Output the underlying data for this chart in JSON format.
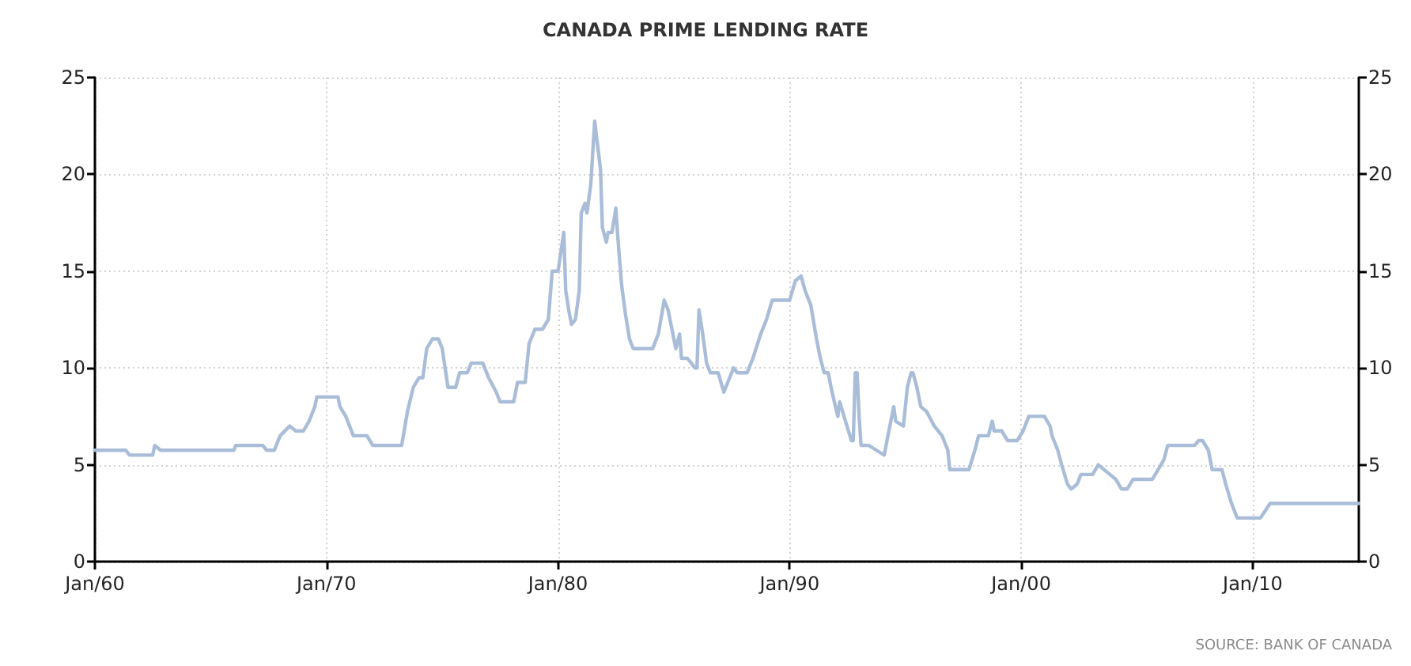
{
  "chart_data": {
    "type": "line",
    "title": "CANADA PRIME LENDING RATE",
    "x": [
      "1960-01",
      "1961-05",
      "1961-07",
      "1962-07",
      "1962-08",
      "1962-11",
      "1966-01",
      "1966-02",
      "1967-04",
      "1967-06",
      "1967-10",
      "1968-01",
      "1968-06",
      "1968-09",
      "1969-01",
      "1969-04",
      "1969-07",
      "1969-08",
      "1970-07",
      "1970-08",
      "1970-11",
      "1971-03",
      "1971-10",
      "1972-01",
      "1973-04",
      "1973-07",
      "1973-10",
      "1974-01",
      "1974-03",
      "1974-05",
      "1974-08",
      "1974-11",
      "1975-01",
      "1975-04",
      "1975-08",
      "1975-10",
      "1976-02",
      "1976-04",
      "1976-10",
      "1977-01",
      "1977-05",
      "1977-07",
      "1978-02",
      "1978-04",
      "1978-08",
      "1978-10",
      "1979-01",
      "1979-05",
      "1979-08",
      "1979-10",
      "1980-01",
      "1980-04",
      "1980-05",
      "1980-07",
      "1980-08",
      "1980-10",
      "1980-12",
      "1981-01",
      "1981-03",
      "1981-04",
      "1981-06",
      "1981-08",
      "1981-11",
      "1981-12",
      "1982-02",
      "1982-03",
      "1982-05",
      "1982-07",
      "1982-08",
      "1982-10",
      "1982-12",
      "1983-02",
      "1983-04",
      "1984-02",
      "1984-05",
      "1984-08",
      "1984-10",
      "1985-01",
      "1985-02",
      "1985-04",
      "1985-05",
      "1985-08",
      "1985-12",
      "1986-01",
      "1986-02",
      "1986-04",
      "1986-06",
      "1986-08",
      "1986-12",
      "1987-03",
      "1987-06",
      "1987-08",
      "1987-10",
      "1988-03",
      "1988-06",
      "1988-10",
      "1989-01",
      "1989-04",
      "1990-01",
      "1990-04",
      "1990-07",
      "1990-09",
      "1990-12",
      "1991-03",
      "1991-05",
      "1991-07",
      "1991-09",
      "1991-11",
      "1992-02",
      "1992-03",
      "1992-06",
      "1992-09",
      "1992-10",
      "1992-11",
      "1992-12",
      "1993-01",
      "1993-02",
      "1993-06",
      "1993-10",
      "1994-02",
      "1994-04",
      "1994-07",
      "1994-08",
      "1994-12",
      "1995-02",
      "1995-04",
      "1995-05",
      "1995-07",
      "1995-09",
      "1995-12",
      "1996-04",
      "1996-08",
      "1996-11",
      "1996-12",
      "1997-10",
      "1998-01",
      "1998-03",
      "1998-08",
      "1998-10",
      "1998-11",
      "1999-03",
      "1999-06",
      "1999-11",
      "2000-02",
      "2000-05",
      "2001-01",
      "2001-04",
      "2001-05",
      "2001-08",
      "2001-10",
      "2002-01",
      "2002-03",
      "2002-06",
      "2002-08",
      "2003-02",
      "2003-05",
      "2003-08",
      "2003-11",
      "2004-02",
      "2004-05",
      "2004-08",
      "2004-11",
      "2005-09",
      "2005-12",
      "2006-03",
      "2006-05",
      "2007-07",
      "2007-09",
      "2007-11",
      "2008-02",
      "2008-04",
      "2008-09",
      "2008-11",
      "2009-02",
      "2009-05",
      "2010-05",
      "2010-10",
      "2014-08"
    ],
    "values": [
      5.75,
      5.75,
      5.5,
      5.5,
      6.0,
      5.75,
      5.75,
      6.0,
      6.0,
      5.75,
      5.75,
      6.5,
      7.0,
      6.75,
      6.75,
      7.25,
      8.0,
      8.5,
      8.5,
      8.0,
      7.5,
      6.5,
      6.5,
      6.0,
      6.0,
      7.75,
      9.0,
      9.5,
      9.5,
      11.0,
      11.5,
      11.5,
      11.0,
      9.0,
      9.0,
      9.75,
      9.75,
      10.25,
      10.25,
      9.5,
      8.75,
      8.25,
      8.25,
      9.25,
      9.25,
      11.25,
      12.0,
      12.0,
      12.5,
      15.0,
      15.0,
      17.0,
      14.0,
      12.75,
      12.25,
      12.5,
      14.0,
      18.0,
      18.5,
      18.0,
      19.5,
      22.75,
      20.25,
      17.25,
      16.5,
      17.0,
      17.0,
      18.25,
      16.75,
      14.25,
      12.75,
      11.5,
      11.0,
      11.0,
      11.75,
      13.5,
      13.0,
      11.5,
      11.0,
      11.75,
      10.5,
      10.5,
      10.0,
      10.0,
      13.0,
      11.75,
      10.25,
      9.75,
      9.75,
      8.75,
      9.5,
      10.0,
      9.75,
      9.75,
      10.5,
      11.75,
      12.5,
      13.5,
      13.5,
      14.5,
      14.75,
      14.0,
      13.25,
      11.5,
      10.5,
      9.75,
      9.75,
      8.75,
      7.5,
      8.25,
      7.25,
      6.25,
      6.25,
      9.75,
      9.75,
      7.5,
      6.0,
      6.0,
      5.75,
      5.5,
      6.5,
      8.0,
      7.25,
      7.0,
      9.0,
      9.75,
      9.75,
      9.0,
      8.0,
      7.75,
      7.0,
      6.5,
      5.75,
      4.75,
      4.75,
      5.75,
      6.5,
      6.5,
      7.25,
      6.75,
      6.75,
      6.25,
      6.25,
      6.75,
      7.5,
      7.5,
      7.0,
      6.5,
      5.75,
      5.0,
      4.0,
      3.75,
      4.0,
      4.5,
      4.5,
      5.0,
      4.75,
      4.5,
      4.25,
      3.75,
      3.75,
      4.25,
      4.25,
      4.75,
      5.25,
      6.0,
      6.0,
      6.25,
      6.25,
      5.75,
      4.75,
      4.75,
      4.0,
      3.0,
      2.25,
      2.25,
      3.0,
      3.0
    ],
    "color": "#a9bdd9",
    "marker": "none",
    "line_style": "solid",
    "xlim": [
      "1960-01",
      "2014-08"
    ],
    "xticks": [
      {
        "value": "1960-01",
        "label": "Jan/60"
      },
      {
        "value": "1970-01",
        "label": "Jan/70"
      },
      {
        "value": "1980-01",
        "label": "Jan/80"
      },
      {
        "value": "1990-01",
        "label": "Jan/90"
      },
      {
        "value": "2000-01",
        "label": "Jan/00"
      },
      {
        "value": "2010-01",
        "label": "Jan/10"
      }
    ],
    "ylim": [
      0,
      25
    ],
    "yticks": [
      0,
      5,
      10,
      15,
      20,
      25
    ],
    "y2lim": [
      0,
      25
    ],
    "y2ticks": [
      0,
      5,
      10,
      15,
      20,
      25
    ],
    "grid": true,
    "annotations": [
      "SOURCE: BANK OF CANADA"
    ]
  }
}
